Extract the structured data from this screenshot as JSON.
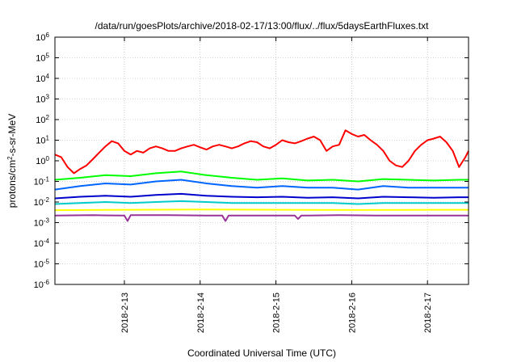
{
  "chart_data": {
    "type": "line",
    "title": "/data/run/goesPlots/archive/2018-02-17/13:00/flux/../flux/5daysEarthFluxes.txt",
    "xlabel": "Coordinated Universal Time (UTC)",
    "ylabel": {
      "base": "protons/cm",
      "sup": "2",
      "rest": "-s-sr-MeV"
    },
    "x_axis": {
      "type": "date",
      "range": [
        "2018-02-12T02:00",
        "2018-02-17T13:00"
      ]
    },
    "y_axis": {
      "scale": "log",
      "range": [
        1e-06,
        1000000.0
      ]
    },
    "grid": true,
    "legend": "none",
    "x_ticks": [
      {
        "value": "2018-02-13T00:00",
        "label": "2018-2-13"
      },
      {
        "value": "2018-02-14T00:00",
        "label": "2018-2-14"
      },
      {
        "value": "2018-02-15T00:00",
        "label": "2018-2-15"
      },
      {
        "value": "2018-02-16T00:00",
        "label": "2018-2-16"
      },
      {
        "value": "2018-02-17T00:00",
        "label": "2018-2-17"
      }
    ],
    "y_ticks": [
      {
        "exp": -6,
        "label": "10",
        "sup": "-6"
      },
      {
        "exp": -5,
        "label": "10",
        "sup": "-5"
      },
      {
        "exp": -4,
        "label": "10",
        "sup": "-4"
      },
      {
        "exp": -3,
        "label": "10",
        "sup": "-3"
      },
      {
        "exp": -2,
        "label": "10",
        "sup": "-2"
      },
      {
        "exp": -1,
        "label": "10",
        "sup": "-1"
      },
      {
        "exp": 0,
        "label": "10",
        "sup": "0"
      },
      {
        "exp": 1,
        "label": "10",
        "sup": "1"
      },
      {
        "exp": 2,
        "label": "10",
        "sup": "2"
      },
      {
        "exp": 3,
        "label": "10",
        "sup": "3"
      },
      {
        "exp": 4,
        "label": "10",
        "sup": "4"
      },
      {
        "exp": 5,
        "label": "10",
        "sup": "5"
      },
      {
        "exp": 6,
        "label": "10",
        "sup": "6"
      }
    ],
    "series": [
      {
        "color": "#ff0000",
        "x": [
          "2018-02-12T02:00",
          "2018-02-12T04:00",
          "2018-02-12T06:00",
          "2018-02-12T08:00",
          "2018-02-12T10:00",
          "2018-02-12T12:00",
          "2018-02-12T14:00",
          "2018-02-12T16:00",
          "2018-02-12T18:00",
          "2018-02-12T20:00",
          "2018-02-12T22:00",
          "2018-02-13T00:00",
          "2018-02-13T02:00",
          "2018-02-13T04:00",
          "2018-02-13T06:00",
          "2018-02-13T08:00",
          "2018-02-13T10:00",
          "2018-02-13T12:00",
          "2018-02-13T14:00",
          "2018-02-13T16:00",
          "2018-02-13T18:00",
          "2018-02-13T20:00",
          "2018-02-13T22:00",
          "2018-02-14T00:00",
          "2018-02-14T02:00",
          "2018-02-14T04:00",
          "2018-02-14T06:00",
          "2018-02-14T08:00",
          "2018-02-14T10:00",
          "2018-02-14T12:00",
          "2018-02-14T14:00",
          "2018-02-14T16:00",
          "2018-02-14T18:00",
          "2018-02-14T20:00",
          "2018-02-14T22:00",
          "2018-02-15T00:00",
          "2018-02-15T02:00",
          "2018-02-15T04:00",
          "2018-02-15T06:00",
          "2018-02-15T08:00",
          "2018-02-15T10:00",
          "2018-02-15T12:00",
          "2018-02-15T14:00",
          "2018-02-15T16:00",
          "2018-02-15T18:00",
          "2018-02-15T20:00",
          "2018-02-15T22:00",
          "2018-02-16T00:00",
          "2018-02-16T02:00",
          "2018-02-16T04:00",
          "2018-02-16T06:00",
          "2018-02-16T08:00",
          "2018-02-16T10:00",
          "2018-02-16T12:00",
          "2018-02-16T14:00",
          "2018-02-16T16:00",
          "2018-02-16T18:00",
          "2018-02-16T20:00",
          "2018-02-16T22:00",
          "2018-02-17T00:00",
          "2018-02-17T02:00",
          "2018-02-17T04:00",
          "2018-02-17T06:00",
          "2018-02-17T08:00",
          "2018-02-17T10:00",
          "2018-02-17T12:00",
          "2018-02-17T13:00"
        ],
        "y": [
          2,
          1.5,
          0.5,
          0.25,
          0.4,
          0.6,
          1.2,
          2.5,
          5,
          9,
          7,
          3,
          2,
          3,
          2.5,
          4,
          5,
          4,
          3,
          3,
          4,
          5,
          6,
          4.5,
          3.5,
          5,
          6,
          5,
          4,
          5,
          7,
          9,
          8,
          5,
          4,
          6,
          10,
          8,
          7,
          9,
          12,
          15,
          10,
          3,
          5,
          6,
          30,
          20,
          15,
          18,
          10,
          6,
          3,
          1,
          0.6,
          0.5,
          1,
          3,
          6,
          10,
          12,
          15,
          8,
          3,
          0.5,
          1.5,
          3
        ]
      },
      {
        "color": "#00ff00",
        "x": [
          "2018-02-12T02:00",
          "2018-02-12T10:00",
          "2018-02-12T18:00",
          "2018-02-13T02:00",
          "2018-02-13T10:00",
          "2018-02-13T18:00",
          "2018-02-14T02:00",
          "2018-02-14T10:00",
          "2018-02-14T18:00",
          "2018-02-15T02:00",
          "2018-02-15T10:00",
          "2018-02-15T18:00",
          "2018-02-16T02:00",
          "2018-02-16T10:00",
          "2018-02-16T18:00",
          "2018-02-17T02:00",
          "2018-02-17T10:00",
          "2018-02-17T13:00"
        ],
        "y": [
          0.12,
          0.15,
          0.2,
          0.18,
          0.25,
          0.3,
          0.2,
          0.15,
          0.12,
          0.14,
          0.11,
          0.12,
          0.1,
          0.13,
          0.12,
          0.11,
          0.12,
          0.12
        ]
      },
      {
        "color": "#0066ff",
        "x": [
          "2018-02-12T02:00",
          "2018-02-12T10:00",
          "2018-02-12T18:00",
          "2018-02-13T02:00",
          "2018-02-13T10:00",
          "2018-02-13T18:00",
          "2018-02-14T02:00",
          "2018-02-14T10:00",
          "2018-02-14T18:00",
          "2018-02-15T02:00",
          "2018-02-15T10:00",
          "2018-02-15T18:00",
          "2018-02-16T02:00",
          "2018-02-16T10:00",
          "2018-02-16T18:00",
          "2018-02-17T02:00",
          "2018-02-17T10:00",
          "2018-02-17T13:00"
        ],
        "y": [
          0.04,
          0.06,
          0.08,
          0.07,
          0.1,
          0.12,
          0.08,
          0.06,
          0.05,
          0.06,
          0.05,
          0.05,
          0.04,
          0.06,
          0.05,
          0.05,
          0.05,
          0.05
        ]
      },
      {
        "color": "#0000cc",
        "x": [
          "2018-02-12T02:00",
          "2018-02-12T10:00",
          "2018-02-12T18:00",
          "2018-02-13T02:00",
          "2018-02-13T10:00",
          "2018-02-13T18:00",
          "2018-02-14T02:00",
          "2018-02-14T10:00",
          "2018-02-14T18:00",
          "2018-02-15T02:00",
          "2018-02-15T10:00",
          "2018-02-15T18:00",
          "2018-02-16T02:00",
          "2018-02-16T10:00",
          "2018-02-16T18:00",
          "2018-02-17T02:00",
          "2018-02-17T10:00",
          "2018-02-17T13:00"
        ],
        "y": [
          0.015,
          0.018,
          0.02,
          0.018,
          0.022,
          0.025,
          0.02,
          0.018,
          0.017,
          0.018,
          0.016,
          0.017,
          0.015,
          0.018,
          0.017,
          0.016,
          0.017,
          0.017
        ]
      },
      {
        "color": "#00cccc",
        "x": [
          "2018-02-12T02:00",
          "2018-02-12T10:00",
          "2018-02-12T18:00",
          "2018-02-13T02:00",
          "2018-02-13T10:00",
          "2018-02-13T18:00",
          "2018-02-14T02:00",
          "2018-02-14T10:00",
          "2018-02-14T18:00",
          "2018-02-15T02:00",
          "2018-02-15T10:00",
          "2018-02-15T18:00",
          "2018-02-16T02:00",
          "2018-02-16T10:00",
          "2018-02-16T18:00",
          "2018-02-17T02:00",
          "2018-02-17T10:00",
          "2018-02-17T13:00"
        ],
        "y": [
          0.008,
          0.009,
          0.01,
          0.009,
          0.01,
          0.011,
          0.01,
          0.009,
          0.009,
          0.009,
          0.009,
          0.009,
          0.008,
          0.009,
          0.009,
          0.009,
          0.009,
          0.009
        ]
      },
      {
        "color": "#ffff00",
        "x": [
          "2018-02-12T02:00",
          "2018-02-13T02:00",
          "2018-02-14T02:00",
          "2018-02-15T02:00",
          "2018-02-16T02:00",
          "2018-02-17T02:00",
          "2018-02-17T13:00"
        ],
        "y": [
          0.004,
          0.0042,
          0.0043,
          0.0042,
          0.0041,
          0.0042,
          0.0042
        ]
      },
      {
        "color": "#993399",
        "x": [
          "2018-02-12T02:00",
          "2018-02-12T14:00",
          "2018-02-13T00:00",
          "2018-02-13T01:00",
          "2018-02-13T02:00",
          "2018-02-13T14:00",
          "2018-02-14T02:00",
          "2018-02-14T07:00",
          "2018-02-14T08:00",
          "2018-02-14T09:00",
          "2018-02-14T20:00",
          "2018-02-15T06:00",
          "2018-02-15T07:00",
          "2018-02-15T08:00",
          "2018-02-15T20:00",
          "2018-02-16T08:00",
          "2018-02-16T20:00",
          "2018-02-17T08:00",
          "2018-02-17T13:00"
        ],
        "y": [
          0.0022,
          0.0023,
          0.0022,
          0.0012,
          0.0023,
          0.0023,
          0.0022,
          0.0022,
          0.0012,
          0.0022,
          0.0022,
          0.0022,
          0.0015,
          0.0022,
          0.0023,
          0.0022,
          0.0022,
          0.0022,
          0.0022
        ]
      }
    ]
  }
}
